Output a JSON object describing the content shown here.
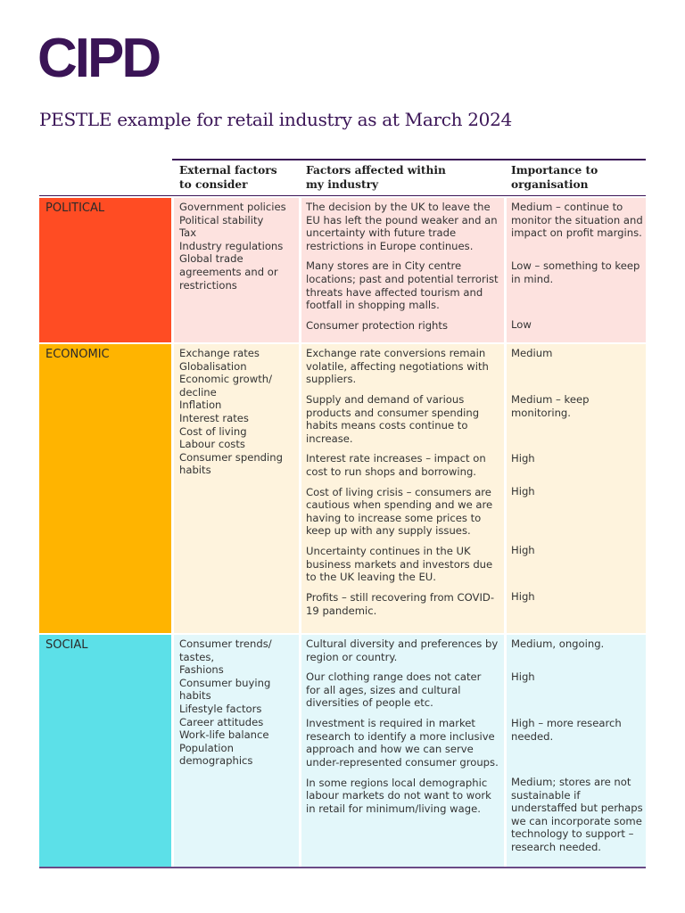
{
  "logo": {
    "text": "CIPD",
    "color": "#3a1456"
  },
  "title": "PESTLE example for retail industry as at March 2024",
  "table": {
    "headers": {
      "external": "External factors\nto consider",
      "affected": "Factors affected within\nmy industry",
      "importance": "Importance to\norganisation"
    },
    "header_lines": {
      "external": [
        "External factors",
        "to consider"
      ],
      "affected": [
        "Factors affected within",
        "my industry"
      ],
      "importance": [
        "Importance to",
        "organisation"
      ]
    },
    "sections": [
      {
        "category": "POLITICAL",
        "cat_color": "#ff4c23",
        "bg_color": "#fde2df",
        "external_factors": [
          "Government policies",
          "Political stability",
          "Tax",
          "Industry regulations",
          "Global trade",
          "agreements and or",
          "restrictions"
        ],
        "rows": [
          {
            "factor": "The decision by the UK to leave the EU has left the pound weaker and an uncertainty with future trade restrictions in Europe continues.",
            "importance": "Medium – continue to monitor the situation and impact on profit margins."
          },
          {
            "factor": "Many stores are in City centre locations; past and potential terrorist threats have affected tourism and footfall in shopping malls.",
            "importance": "Low – something to keep in mind."
          },
          {
            "factor": "Consumer protection rights",
            "importance": "Low"
          }
        ]
      },
      {
        "category": "ECONOMIC",
        "cat_color": "#ffb400",
        "bg_color": "#fef3dd",
        "external_factors": [
          "Exchange rates",
          "Globalisation",
          "Economic growth/",
          "decline",
          "Inflation",
          "Interest rates",
          "Cost of living",
          "Labour costs",
          "Consumer spending",
          "habits"
        ],
        "rows": [
          {
            "factor": "Exchange rate conversions remain volatile, affecting negotiations with suppliers.",
            "importance": "Medium"
          },
          {
            "factor": "Supply and demand of various products and consumer spending habits means costs continue to increase.",
            "importance": "Medium – keep monitoring."
          },
          {
            "factor": "Interest rate increases – impact on cost to run shops and borrowing.",
            "importance": "High"
          },
          {
            "factor": "Cost of living crisis – consumers are cautious when spending and we are having to increase some prices to keep up with any supply issues.",
            "importance": "High"
          },
          {
            "factor": "Uncertainty continues in the UK business markets and investors due to the UK leaving the EU.",
            "importance": "High"
          },
          {
            "factor": "Profits – still recovering from COVID-19 pandemic.",
            "importance": "High"
          }
        ]
      },
      {
        "category": "SOCIAL",
        "cat_color": "#5ce0e8",
        "bg_color": "#e3f7fa",
        "external_factors": [
          "Consumer trends/",
          "tastes,",
          "Fashions",
          "Consumer buying",
          "habits",
          "Lifestyle factors",
          "Career attitudes",
          "Work-life balance",
          "Population",
          "demographics"
        ],
        "rows": [
          {
            "factor": "Cultural diversity and preferences by region or country.",
            "importance": "Medium, ongoing."
          },
          {
            "factor": "Our clothing range does not cater for all ages, sizes and cultural diversities of people etc.",
            "importance": "High"
          },
          {
            "factor": "Investment is required in market research to identify a more inclusive approach and how we can serve under-represented consumer groups.",
            "importance": "High – more research needed."
          },
          {
            "factor": "In some regions local demographic labour markets do not want to work in retail for minimum/living wage.",
            "importance": "Medium; stores are not sustainable if understaffed but perhaps we can incorporate some technology to support – research needed."
          }
        ]
      }
    ]
  }
}
